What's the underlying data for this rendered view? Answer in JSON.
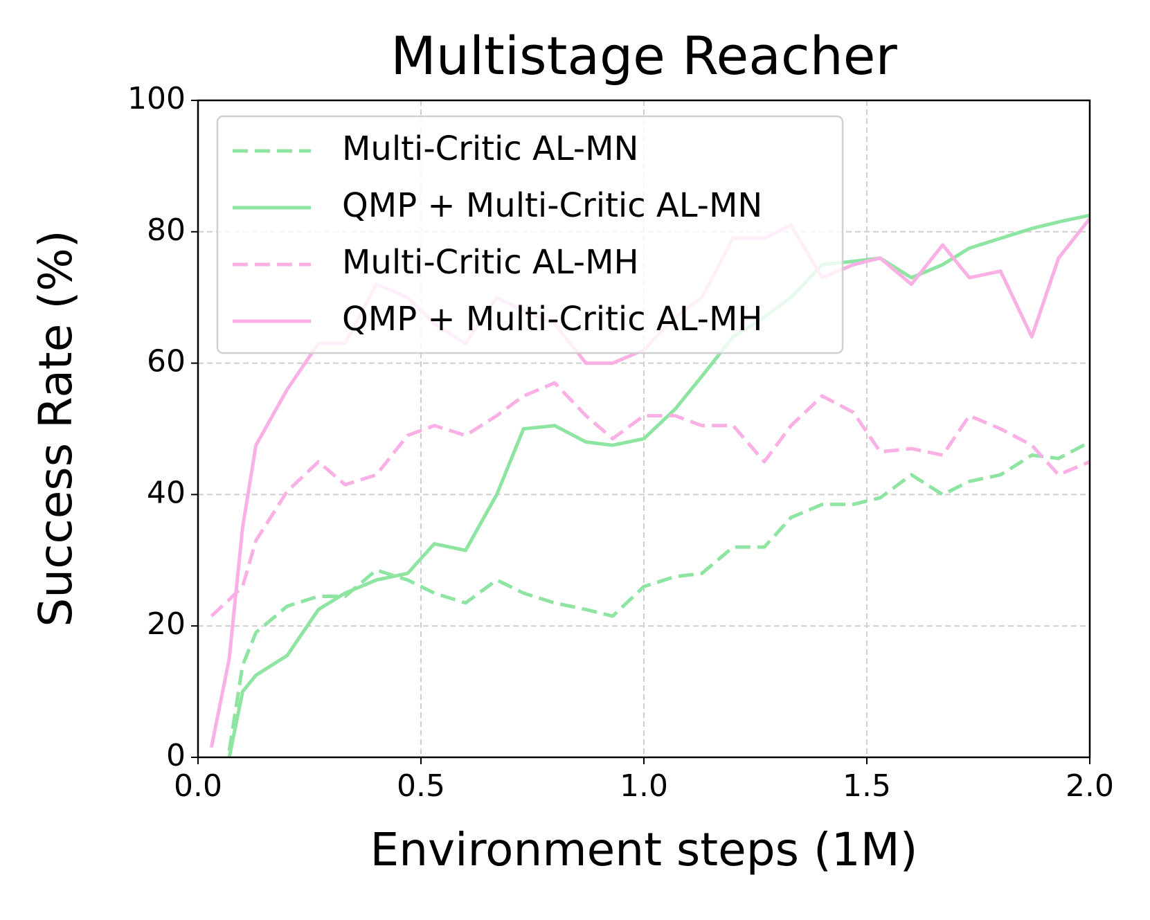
{
  "chart_data": {
    "type": "line",
    "title": "Multistage Reacher",
    "x_label": "Environment steps (1M)",
    "y_label": "Success Rate (%)",
    "x": [
      0.03,
      0.07,
      0.1,
      0.13,
      0.2,
      0.27,
      0.33,
      0.4,
      0.47,
      0.53,
      0.6,
      0.67,
      0.73,
      0.8,
      0.87,
      0.93,
      1.0,
      1.07,
      1.13,
      1.2,
      1.27,
      1.33,
      1.4,
      1.47,
      1.53,
      1.6,
      1.67,
      1.73,
      1.8,
      1.87,
      1.93,
      2.0
    ],
    "series": [
      {
        "name": "Multi-Critic AL-MN",
        "color": "#8de5a1",
        "linestyle": "dashed",
        "values": [
          null,
          1,
          14,
          19,
          23,
          24.5,
          24.5,
          28.5,
          27,
          25,
          23.5,
          27,
          25,
          23.5,
          22.5,
          21.5,
          26,
          27.5,
          28,
          32,
          32,
          36.5,
          38.5,
          38.5,
          39.5,
          43,
          40,
          42,
          43,
          46,
          45.5,
          48
        ]
      },
      {
        "name": "QMP + Multi-Critic AL-MN",
        "color": "#8de5a1",
        "linestyle": "solid",
        "values": [
          null,
          0,
          10,
          12.5,
          15.5,
          22.5,
          25,
          27,
          28,
          32.5,
          31.5,
          40,
          50,
          50.5,
          48,
          47.5,
          48.5,
          53,
          58,
          64,
          67,
          70,
          75,
          75.5,
          76,
          73,
          75,
          77.5,
          79,
          80.5,
          81.5,
          82.5
        ]
      },
      {
        "name": "Multi-Critic AL-MH",
        "color": "#fab0e4",
        "linestyle": "dashed",
        "values": [
          21.5,
          24,
          26,
          33,
          40.5,
          45,
          41.5,
          43,
          49,
          50.5,
          49,
          52,
          55,
          57,
          52,
          48.5,
          52,
          52,
          50.5,
          50.5,
          45,
          50.5,
          55,
          52.5,
          46.5,
          47,
          46,
          52,
          50,
          47.5,
          43,
          45
        ]
      },
      {
        "name": "QMP + Multi-Critic AL-MH",
        "color": "#fab0e4",
        "linestyle": "solid",
        "values": [
          1.5,
          15,
          35,
          47.5,
          56,
          63,
          63,
          72,
          70,
          66,
          63,
          70,
          68,
          66,
          60,
          60,
          62,
          67,
          70,
          79,
          79,
          81,
          73,
          75,
          76,
          72,
          78,
          73,
          74,
          64,
          76,
          82
        ]
      }
    ],
    "xlim": [
      0,
      2
    ],
    "xticks": [
      {
        "value": 0,
        "label": "0.0"
      },
      0.5,
      {
        "value": 1,
        "label": "1.0"
      },
      1.5,
      {
        "value": 2,
        "label": "2.0"
      }
    ],
    "ylim": [
      0,
      100
    ],
    "yticks": [
      0,
      20,
      40,
      60,
      80,
      100
    ],
    "grid": true,
    "legend": "upper left"
  }
}
